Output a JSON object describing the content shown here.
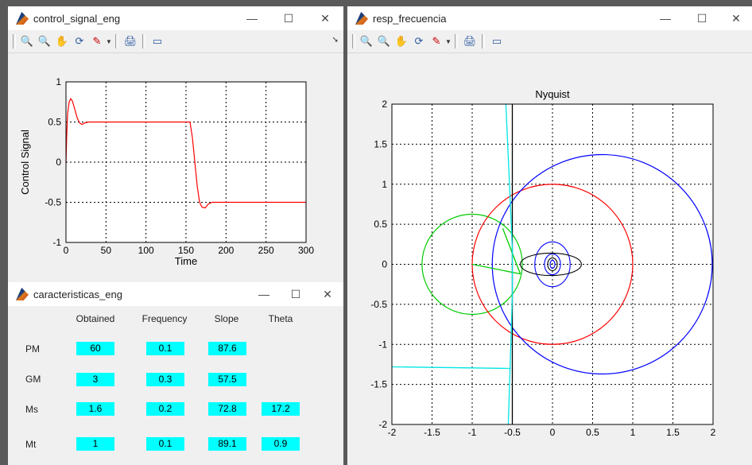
{
  "windows": {
    "control": {
      "title": "control_signal_eng",
      "chart_data": {
        "type": "line",
        "xlabel": "Time",
        "ylabel": "Control Signal",
        "xlim": [
          0,
          300
        ],
        "ylim": [
          -1,
          1
        ],
        "xticks": [
          "0",
          "50",
          "100",
          "150",
          "200",
          "250",
          "300"
        ],
        "yticks": [
          "1",
          "0.5",
          "0",
          "-0.5",
          "-1"
        ],
        "grid": true,
        "series": [
          {
            "color": "#ff0000",
            "points": [
              [
                0,
                0
              ],
              [
                1,
                0.35
              ],
              [
                2,
                0.6
              ],
              [
                4,
                0.75
              ],
              [
                6,
                0.79
              ],
              [
                8,
                0.76
              ],
              [
                11,
                0.66
              ],
              [
                14,
                0.55
              ],
              [
                17,
                0.49
              ],
              [
                20,
                0.47
              ],
              [
                24,
                0.49
              ],
              [
                28,
                0.5
              ],
              [
                40,
                0.5
              ],
              [
                155,
                0.5
              ],
              [
                158,
                0.3
              ],
              [
                161,
                0.0
              ],
              [
                164,
                -0.3
              ],
              [
                167,
                -0.5
              ],
              [
                170,
                -0.56
              ],
              [
                174,
                -0.57
              ],
              [
                178,
                -0.52
              ],
              [
                183,
                -0.5
              ],
              [
                300,
                -0.5
              ]
            ]
          }
        ]
      }
    },
    "caract": {
      "title": "caracteristicas_eng",
      "headers": [
        "Obtained",
        "Frequency",
        "Slope",
        "Theta"
      ],
      "rows": [
        {
          "label": "PM",
          "obtained": "60",
          "frequency": "0.1",
          "slope": "87.6",
          "theta": ""
        },
        {
          "label": "GM",
          "obtained": "3",
          "frequency": "0.3",
          "slope": "57.5",
          "theta": ""
        },
        {
          "label": "Ms",
          "obtained": "1.6",
          "frequency": "0.2",
          "slope": "72.8",
          "theta": "17.2"
        },
        {
          "label": "Mt",
          "obtained": "1",
          "frequency": "0.1",
          "slope": "89.1",
          "theta": "0.9"
        }
      ]
    },
    "resp": {
      "title": "resp_frecuencia",
      "chart_data": {
        "type": "line",
        "title": "Nyquist",
        "xlim": [
          -2,
          2
        ],
        "ylim": [
          -2,
          2
        ],
        "xticks": [
          "-2",
          "-1.5",
          "-1",
          "-0.5",
          "0",
          "0.5",
          "1",
          "1.5",
          "2"
        ],
        "yticks": [
          "2",
          "1.5",
          "1",
          "0.5",
          "0",
          "-0.5",
          "-1",
          "-1.5",
          "-2"
        ],
        "grid": true,
        "circles": [
          {
            "name": "green",
            "color": "#00cc00",
            "cx": -1.0,
            "cy": 0.0,
            "r": 0.625
          },
          {
            "name": "red",
            "color": "#ff0000",
            "cx": 0.0,
            "cy": 0.0,
            "r": 1.0
          },
          {
            "name": "blue",
            "color": "#0000ff",
            "cx": 0.62,
            "cy": 0.0,
            "r": 1.37
          }
        ],
        "lines": [
          {
            "color": "#00cc00",
            "points": [
              [
                -1.0,
                0.0
              ],
              [
                -0.4,
                -0.12
              ]
            ]
          },
          {
            "color": "#00cc00",
            "points": [
              [
                -0.62,
                0.45
              ],
              [
                -0.4,
                -0.12
              ]
            ]
          },
          {
            "color": "#000000",
            "points": [
              [
                -0.5,
                2.0
              ],
              [
                -0.5,
                -2.0
              ]
            ]
          },
          {
            "color": "#00e5e5",
            "points": [
              [
                -0.58,
                2.0
              ],
              [
                -0.5,
                0.2
              ],
              [
                -0.5,
                -0.4
              ],
              [
                -0.55,
                -2.0
              ]
            ]
          },
          {
            "color": "#00e5e5",
            "points": [
              [
                -2.0,
                -1.28
              ],
              [
                -0.52,
                -1.3
              ]
            ]
          }
        ],
        "loops": [
          {
            "color": "#0000ff",
            "cx": 0.0,
            "cy": 0.0,
            "rx": 0.22,
            "ry": 0.28
          },
          {
            "color": "#000000",
            "cx": -0.02,
            "cy": 0.0,
            "rx": 0.38,
            "ry": 0.14
          },
          {
            "color": "#0000ff",
            "cx": 0.0,
            "cy": 0.0,
            "rx": 0.1,
            "ry": 0.13
          },
          {
            "color": "#000000",
            "cx": 0.0,
            "cy": 0.0,
            "rx": 0.06,
            "ry": 0.08
          },
          {
            "color": "#0000ff",
            "cx": 0.0,
            "cy": 0.0,
            "rx": 0.03,
            "ry": 0.05
          }
        ]
      }
    }
  },
  "icons": {
    "minimize": "—",
    "maximize": "☐",
    "close": "✕",
    "zoom_in": "🔍",
    "zoom_out": "🔍",
    "pan": "✋",
    "rotate": "⟳",
    "data_cursor": "✎",
    "print": "🖨",
    "plot_tools": "▭"
  }
}
